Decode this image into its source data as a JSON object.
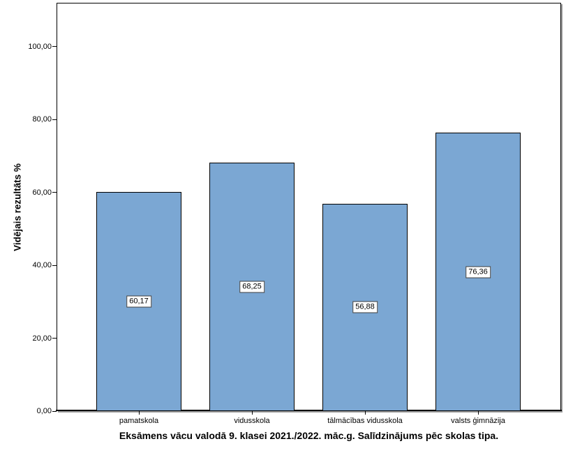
{
  "chart_data": {
    "type": "bar",
    "title": "Eksāmens vācu valodā 9. klasei 2021./2022. māc.g. Salīdzinājums pēc skolas tipa.",
    "xlabel": "",
    "ylabel": "Vidējais rezultāts %",
    "categories": [
      "pamatskola",
      "vidusskola",
      "tālmācības vidusskola",
      "valsts ģimnāzija"
    ],
    "values": [
      60.17,
      68.25,
      56.88,
      76.36
    ],
    "value_labels": [
      "60,17",
      "68,25",
      "56,88",
      "76,36"
    ],
    "y_tick_labels": [
      "0,00",
      "20,00",
      "40,00",
      "60,00",
      "80,00",
      "100,00"
    ],
    "y_tick_values": [
      0,
      20,
      40,
      60,
      80,
      100
    ],
    "ylim": [
      0,
      112
    ],
    "grid": false,
    "legend": null,
    "colors": {
      "bar_fill": "#7BA7D3",
      "bar_border": "#000000",
      "frame": "#000000",
      "shadow": "#9C9C9C",
      "background": "#FFFFFF",
      "text": "#000000"
    }
  }
}
